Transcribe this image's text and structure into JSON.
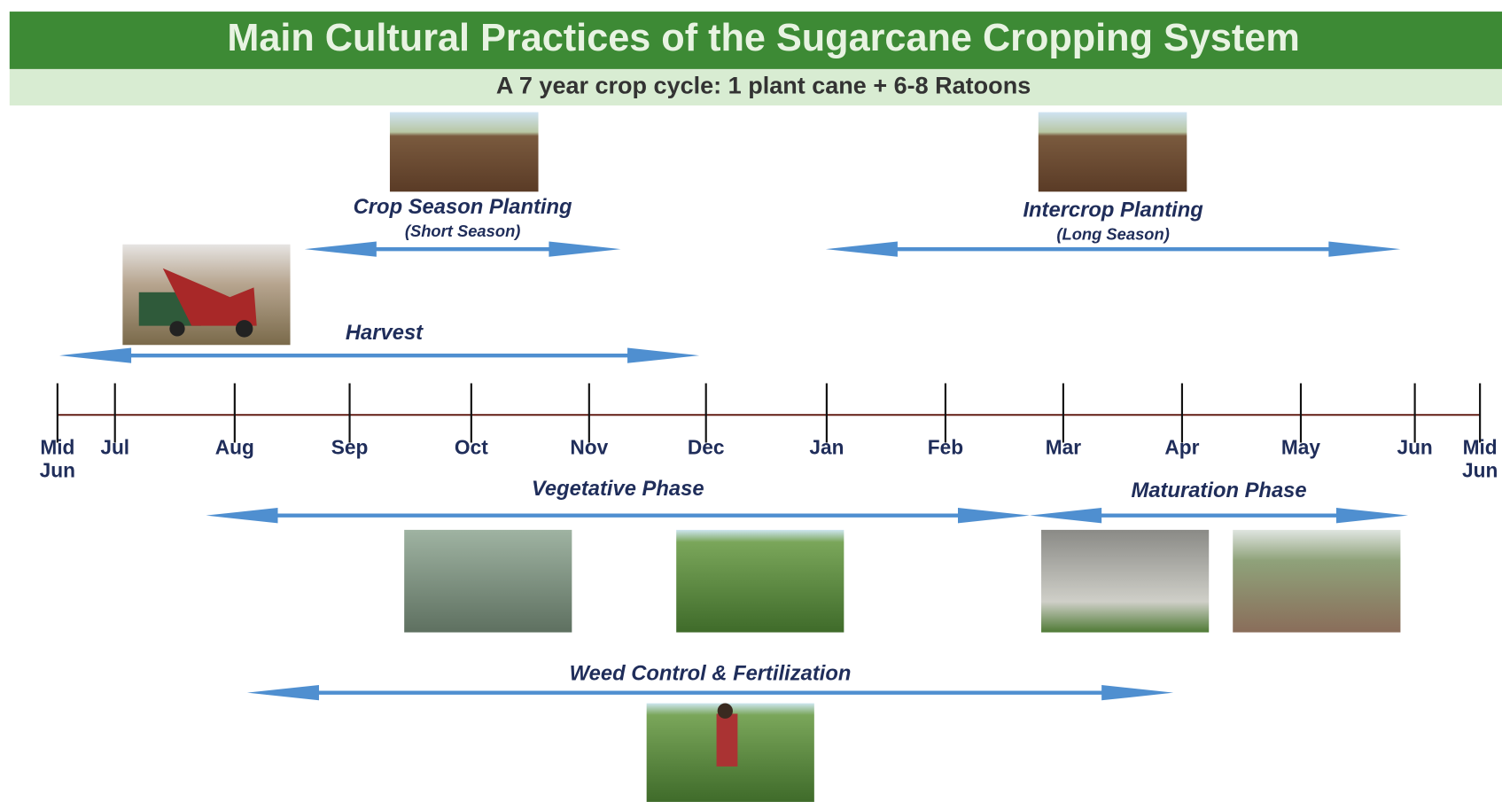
{
  "header": {
    "title": "Main Cultural Practices of the Sugarcane Cropping System",
    "subtitle": "A 7 year crop cycle: 1 plant cane + 6-8 Ratoons"
  },
  "timeline": {
    "months": [
      "Mid Jun",
      "Jul",
      "Aug",
      "Sep",
      "Oct",
      "Nov",
      "Dec",
      "Jan",
      "Feb",
      "Mar",
      "Apr",
      "May",
      "Jun",
      "Mid Jun"
    ]
  },
  "practices": [
    {
      "label": "Crop Season Planting",
      "note": "(Short Season)"
    },
    {
      "label": "Intercrop Planting",
      "note": "(Long Season)"
    },
    {
      "label": "Harvest"
    },
    {
      "label": "Vegetative Phase"
    },
    {
      "label": "Maturation Phase"
    },
    {
      "label": "Weed Control & Fertilization"
    }
  ]
}
